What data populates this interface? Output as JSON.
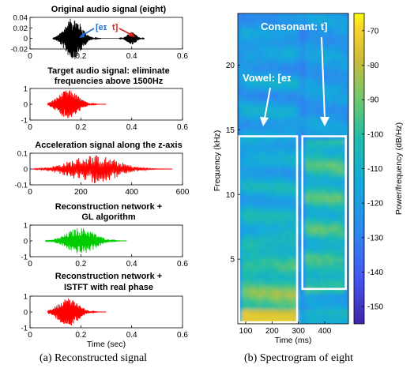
{
  "chart_data": [
    {
      "type": "line",
      "title": "Original audio signal (eight)",
      "xlim": [
        0,
        0.6
      ],
      "ylim": [
        -0.02,
        0.04
      ],
      "xticks": [
        "0",
        "0.2",
        "0.4",
        "0.6"
      ],
      "yticks": [
        "-0.02",
        "0",
        "0.02",
        "0.04"
      ],
      "series": [
        {
          "color": "#000000",
          "segments": [
            {
              "x_range": [
                0.09,
                0.28
              ],
              "peak": 0.04,
              "center": 0.17
            },
            {
              "x_range": [
                0.35,
                0.45
              ],
              "peak": 0.012,
              "center": 0.4
            }
          ]
        }
      ],
      "annotations": [
        {
          "text": "[eɪ",
          "color": "#1f6fd0"
        },
        {
          "text": "t]",
          "color": "#e02020"
        }
      ],
      "grid": false
    },
    {
      "type": "line",
      "title": "Target audio signal: eliminate frequencies above 1500Hz",
      "xlim": [
        0,
        0.6
      ],
      "ylim": [
        -1,
        1
      ],
      "xticks": [
        "0",
        "0.2",
        "0.4",
        "0.6"
      ],
      "yticks": [
        "-1",
        "0",
        "1"
      ],
      "series": [
        {
          "color": "#ff0000",
          "segments": [
            {
              "x_range": [
                0.07,
                0.3
              ],
              "peak": 0.9,
              "center": 0.15
            }
          ]
        }
      ],
      "grid": false
    },
    {
      "type": "line",
      "title": "Acceleration signal along the z-axis",
      "xlim": [
        0,
        600
      ],
      "ylim": [
        -0.1,
        0.1
      ],
      "xticks": [
        "0",
        "200",
        "400",
        "600"
      ],
      "yticks": [
        "-0.1",
        "0",
        "0.1"
      ],
      "series": [
        {
          "color": "#ff0000",
          "segments": [
            {
              "x_range": [
                10,
                560
              ],
              "peak": 0.09,
              "center": 250
            }
          ]
        }
      ],
      "grid": false
    },
    {
      "type": "line",
      "title": "Reconstruction network + GL algorithm",
      "xlim": [
        0,
        0.6
      ],
      "ylim": [
        -1,
        1
      ],
      "xticks": [
        "0",
        "0.2",
        "0.4",
        "0.6"
      ],
      "yticks": [
        "-1",
        "0",
        "1"
      ],
      "series": [
        {
          "color": "#00cc00",
          "segments": [
            {
              "x_range": [
                0.06,
                0.38
              ],
              "peak": 0.85,
              "center": 0.2
            }
          ]
        }
      ],
      "grid": false
    },
    {
      "type": "line",
      "title": "Reconstruction network + ISTFT with real phase",
      "xlabel": "Time (sec)",
      "xlim": [
        0,
        0.6
      ],
      "ylim": [
        -1,
        1
      ],
      "xticks": [
        "0",
        "0.2",
        "0.4",
        "0.6"
      ],
      "yticks": [
        "-1",
        "0",
        "1"
      ],
      "series": [
        {
          "color": "#ff0000",
          "segments": [
            {
              "x_range": [
                0.07,
                0.3
              ],
              "peak": 0.9,
              "center": 0.15
            }
          ]
        }
      ],
      "grid": false
    },
    {
      "type": "heatmap",
      "xlabel": "Time (ms)",
      "ylabel": "Frequency (kHz)",
      "xlim": [
        70,
        490
      ],
      "ylim": [
        0,
        24
      ],
      "xticks": [
        "100",
        "200",
        "300",
        "400"
      ],
      "yticks": [
        "5",
        "10",
        "15",
        "20"
      ],
      "colorbar": {
        "label": "Power/frequency (dB/Hz)",
        "range": [
          -155,
          -65
        ],
        "ticks": [
          "-70",
          "-80",
          "-90",
          "-100",
          "-110",
          "-120",
          "-130",
          "-140",
          "-150"
        ]
      },
      "regions": [
        {
          "label": "Vowel: [eɪ",
          "x_range": [
            75,
            295
          ],
          "y_range": [
            0,
            14.5
          ]
        },
        {
          "label": "Consonant: t]",
          "x_range": [
            315,
            480
          ],
          "y_range": [
            2.7,
            14.5
          ]
        }
      ]
    }
  ],
  "captions": {
    "left": "(a) Reconstructed signal",
    "right": "(b) Spectrogram of eight"
  }
}
